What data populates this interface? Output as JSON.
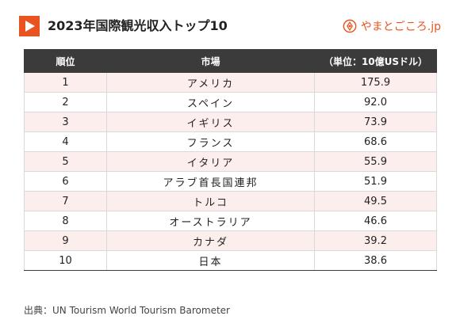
{
  "header": {
    "title": "2023年国際観光収入トップ10",
    "brand_name": "やまとごころ.jp",
    "accent_color": "#e8531f",
    "title_icon": "play-icon",
    "brand_icon": "brand-logo-icon"
  },
  "table": {
    "columns": [
      "順位",
      "市場",
      "（単位：10億USドル）"
    ],
    "rows": [
      {
        "rank": "1",
        "market": "アメリカ",
        "value": "175.9"
      },
      {
        "rank": "2",
        "market": "スペイン",
        "value": "92.0"
      },
      {
        "rank": "3",
        "market": "イギリス",
        "value": "73.9"
      },
      {
        "rank": "4",
        "market": "フランス",
        "value": "68.6"
      },
      {
        "rank": "5",
        "market": "イタリア",
        "value": "55.9"
      },
      {
        "rank": "6",
        "market": "アラブ首長国連邦",
        "value": "51.9"
      },
      {
        "rank": "7",
        "market": "トルコ",
        "value": "49.5"
      },
      {
        "rank": "8",
        "market": "オーストラリア",
        "value": "46.6"
      },
      {
        "rank": "9",
        "market": "カナダ",
        "value": "39.2"
      },
      {
        "rank": "10",
        "market": "日本",
        "value": "38.6"
      }
    ]
  },
  "footer": {
    "source": "出典：UN Tourism World Tourism Barometer"
  }
}
